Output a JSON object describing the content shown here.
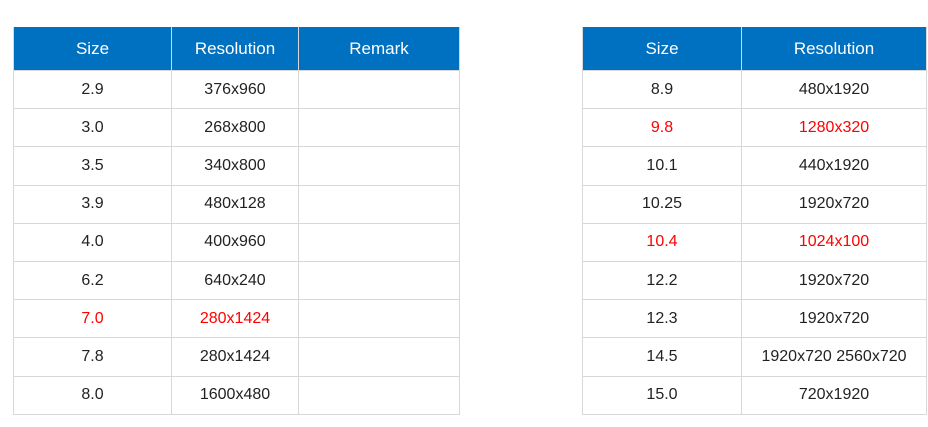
{
  "colors": {
    "header_bg": "#0070c0",
    "highlight": "#ff0000"
  },
  "table_left": {
    "headers": [
      "Size",
      "Resolution",
      "Remark"
    ],
    "rows": [
      {
        "size": "2.9",
        "resolution": "376x960",
        "remark": "",
        "highlight": false
      },
      {
        "size": "3.0",
        "resolution": "268x800",
        "remark": "",
        "highlight": false
      },
      {
        "size": "3.5",
        "resolution": "340x800",
        "remark": "",
        "highlight": false
      },
      {
        "size": "3.9",
        "resolution": "480x128",
        "remark": "",
        "highlight": false
      },
      {
        "size": "4.0",
        "resolution": "400x960",
        "remark": "",
        "highlight": false
      },
      {
        "size": "6.2",
        "resolution": "640x240",
        "remark": "",
        "highlight": false
      },
      {
        "size": "7.0",
        "resolution": "280x1424",
        "remark": "",
        "highlight": true
      },
      {
        "size": "7.8",
        "resolution": "280x1424",
        "remark": "",
        "highlight": false
      },
      {
        "size": "8.0",
        "resolution": "1600x480",
        "remark": "",
        "highlight": false
      }
    ]
  },
  "table_right": {
    "headers": [
      "Size",
      "Resolution"
    ],
    "rows": [
      {
        "size": "8.9",
        "resolution": "480x1920",
        "highlight": false
      },
      {
        "size": "9.8",
        "resolution": "1280x320",
        "highlight": true
      },
      {
        "size": "10.1",
        "resolution": "440x1920",
        "highlight": false
      },
      {
        "size": "10.25",
        "resolution": "1920x720",
        "highlight": false
      },
      {
        "size": "10.4",
        "resolution": "1024x100",
        "highlight": true
      },
      {
        "size": "12.2",
        "resolution": "1920x720",
        "highlight": false
      },
      {
        "size": "12.3",
        "resolution": "1920x720",
        "highlight": false
      },
      {
        "size": "14.5",
        "resolution": "1920x720  2560x720",
        "highlight": false
      },
      {
        "size": "15.0",
        "resolution": "720x1920",
        "highlight": false
      }
    ]
  }
}
